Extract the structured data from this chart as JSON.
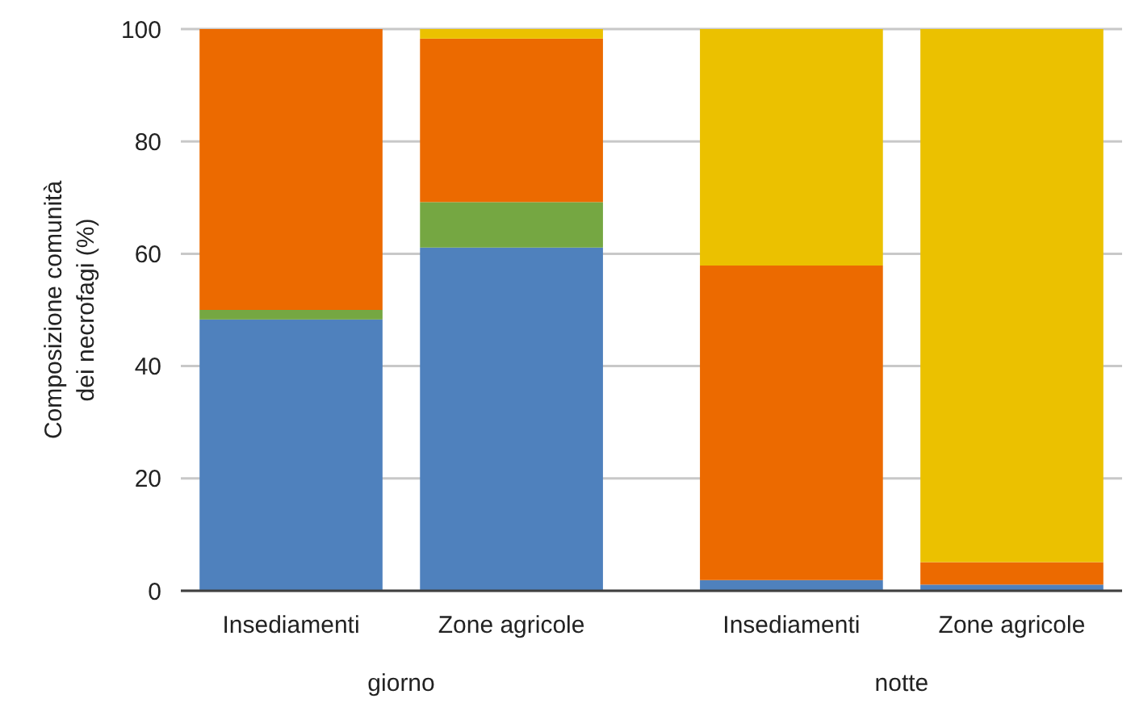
{
  "chart_data": {
    "type": "bar",
    "stacked": true,
    "ylabel": "Composizione comunità\ndei necrofagi (%)",
    "categories": [
      "Insediamenti",
      "Zone agricole",
      "Insediamenti",
      "Zone agricole"
    ],
    "series": [
      {
        "color": "#4f81bd",
        "values": [
          48.3,
          61.1,
          1.9,
          1.1
        ]
      },
      {
        "color": "#75a742",
        "values": [
          1.7,
          8.1,
          0,
          0
        ]
      },
      {
        "color": "#ec6a00",
        "values": [
          50,
          29.1,
          56,
          4
        ]
      },
      {
        "color": "#ebc100",
        "values": [
          0,
          1.7,
          42.1,
          94.9
        ]
      }
    ],
    "ylim": [
      0,
      100
    ],
    "yticks": [
      0,
      20,
      40,
      60,
      80,
      100
    ],
    "grid": "y",
    "annotations": [
      "giorno",
      "notte"
    ]
  }
}
